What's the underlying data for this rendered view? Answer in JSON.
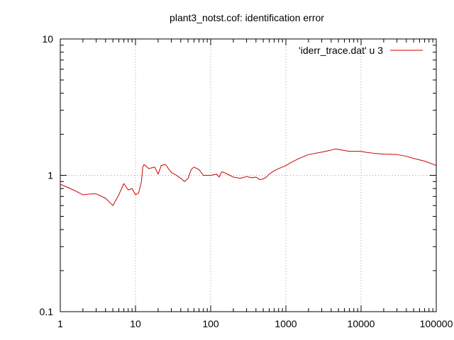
{
  "chart_data": {
    "type": "line",
    "title": "plant3_notst.cof: identification error",
    "xlabel": "",
    "ylabel": "",
    "x_scale": "log",
    "y_scale": "log",
    "xlim": [
      1,
      100000
    ],
    "ylim": [
      0.1,
      10
    ],
    "x_ticks": [
      {
        "value": 1,
        "label": "1"
      },
      {
        "value": 10,
        "label": "10"
      },
      {
        "value": 100,
        "label": "100"
      },
      {
        "value": 1000,
        "label": "1000"
      },
      {
        "value": 10000,
        "label": "10000"
      },
      {
        "value": 100000,
        "label": "100000"
      }
    ],
    "y_ticks": [
      {
        "value": 0.1,
        "label": "0.1"
      },
      {
        "value": 1,
        "label": "1"
      },
      {
        "value": 10,
        "label": "10"
      }
    ],
    "grid": true,
    "legend_position": "top-right",
    "series": [
      {
        "name": "'iderr_trace.dat' u 3",
        "color": "#cc0000",
        "points": [
          [
            1,
            0.86
          ],
          [
            1.5,
            0.78
          ],
          [
            2,
            0.72
          ],
          [
            2.5,
            0.73
          ],
          [
            3,
            0.73
          ],
          [
            4,
            0.68
          ],
          [
            5,
            0.6
          ],
          [
            6,
            0.72
          ],
          [
            7,
            0.87
          ],
          [
            8,
            0.78
          ],
          [
            9,
            0.8
          ],
          [
            10,
            0.72
          ],
          [
            11,
            0.74
          ],
          [
            12,
            0.9
          ],
          [
            12.5,
            1.15
          ],
          [
            13,
            1.2
          ],
          [
            15,
            1.12
          ],
          [
            18,
            1.15
          ],
          [
            20,
            1.02
          ],
          [
            22,
            1.18
          ],
          [
            25,
            1.2
          ],
          [
            30,
            1.05
          ],
          [
            35,
            1.0
          ],
          [
            40,
            0.95
          ],
          [
            45,
            0.9
          ],
          [
            50,
            0.95
          ],
          [
            55,
            1.1
          ],
          [
            60,
            1.15
          ],
          [
            70,
            1.1
          ],
          [
            80,
            1.0
          ],
          [
            90,
            1.0
          ],
          [
            100,
            1.0
          ],
          [
            120,
            1.02
          ],
          [
            130,
            0.97
          ],
          [
            140,
            1.06
          ],
          [
            150,
            1.05
          ],
          [
            180,
            1.0
          ],
          [
            200,
            0.97
          ],
          [
            250,
            0.95
          ],
          [
            300,
            0.98
          ],
          [
            350,
            0.96
          ],
          [
            400,
            0.97
          ],
          [
            450,
            0.93
          ],
          [
            500,
            0.94
          ],
          [
            550,
            0.97
          ],
          [
            600,
            1.02
          ],
          [
            700,
            1.08
          ],
          [
            800,
            1.12
          ],
          [
            900,
            1.15
          ],
          [
            1000,
            1.18
          ],
          [
            1200,
            1.25
          ],
          [
            1500,
            1.33
          ],
          [
            2000,
            1.42
          ],
          [
            3000,
            1.48
          ],
          [
            4000,
            1.53
          ],
          [
            4500,
            1.56
          ],
          [
            5000,
            1.55
          ],
          [
            6000,
            1.52
          ],
          [
            7000,
            1.5
          ],
          [
            8000,
            1.5
          ],
          [
            10000,
            1.5
          ],
          [
            12000,
            1.47
          ],
          [
            15000,
            1.45
          ],
          [
            20000,
            1.43
          ],
          [
            30000,
            1.42
          ],
          [
            40000,
            1.38
          ],
          [
            50000,
            1.33
          ],
          [
            70000,
            1.27
          ],
          [
            100000,
            1.18
          ]
        ]
      }
    ]
  }
}
